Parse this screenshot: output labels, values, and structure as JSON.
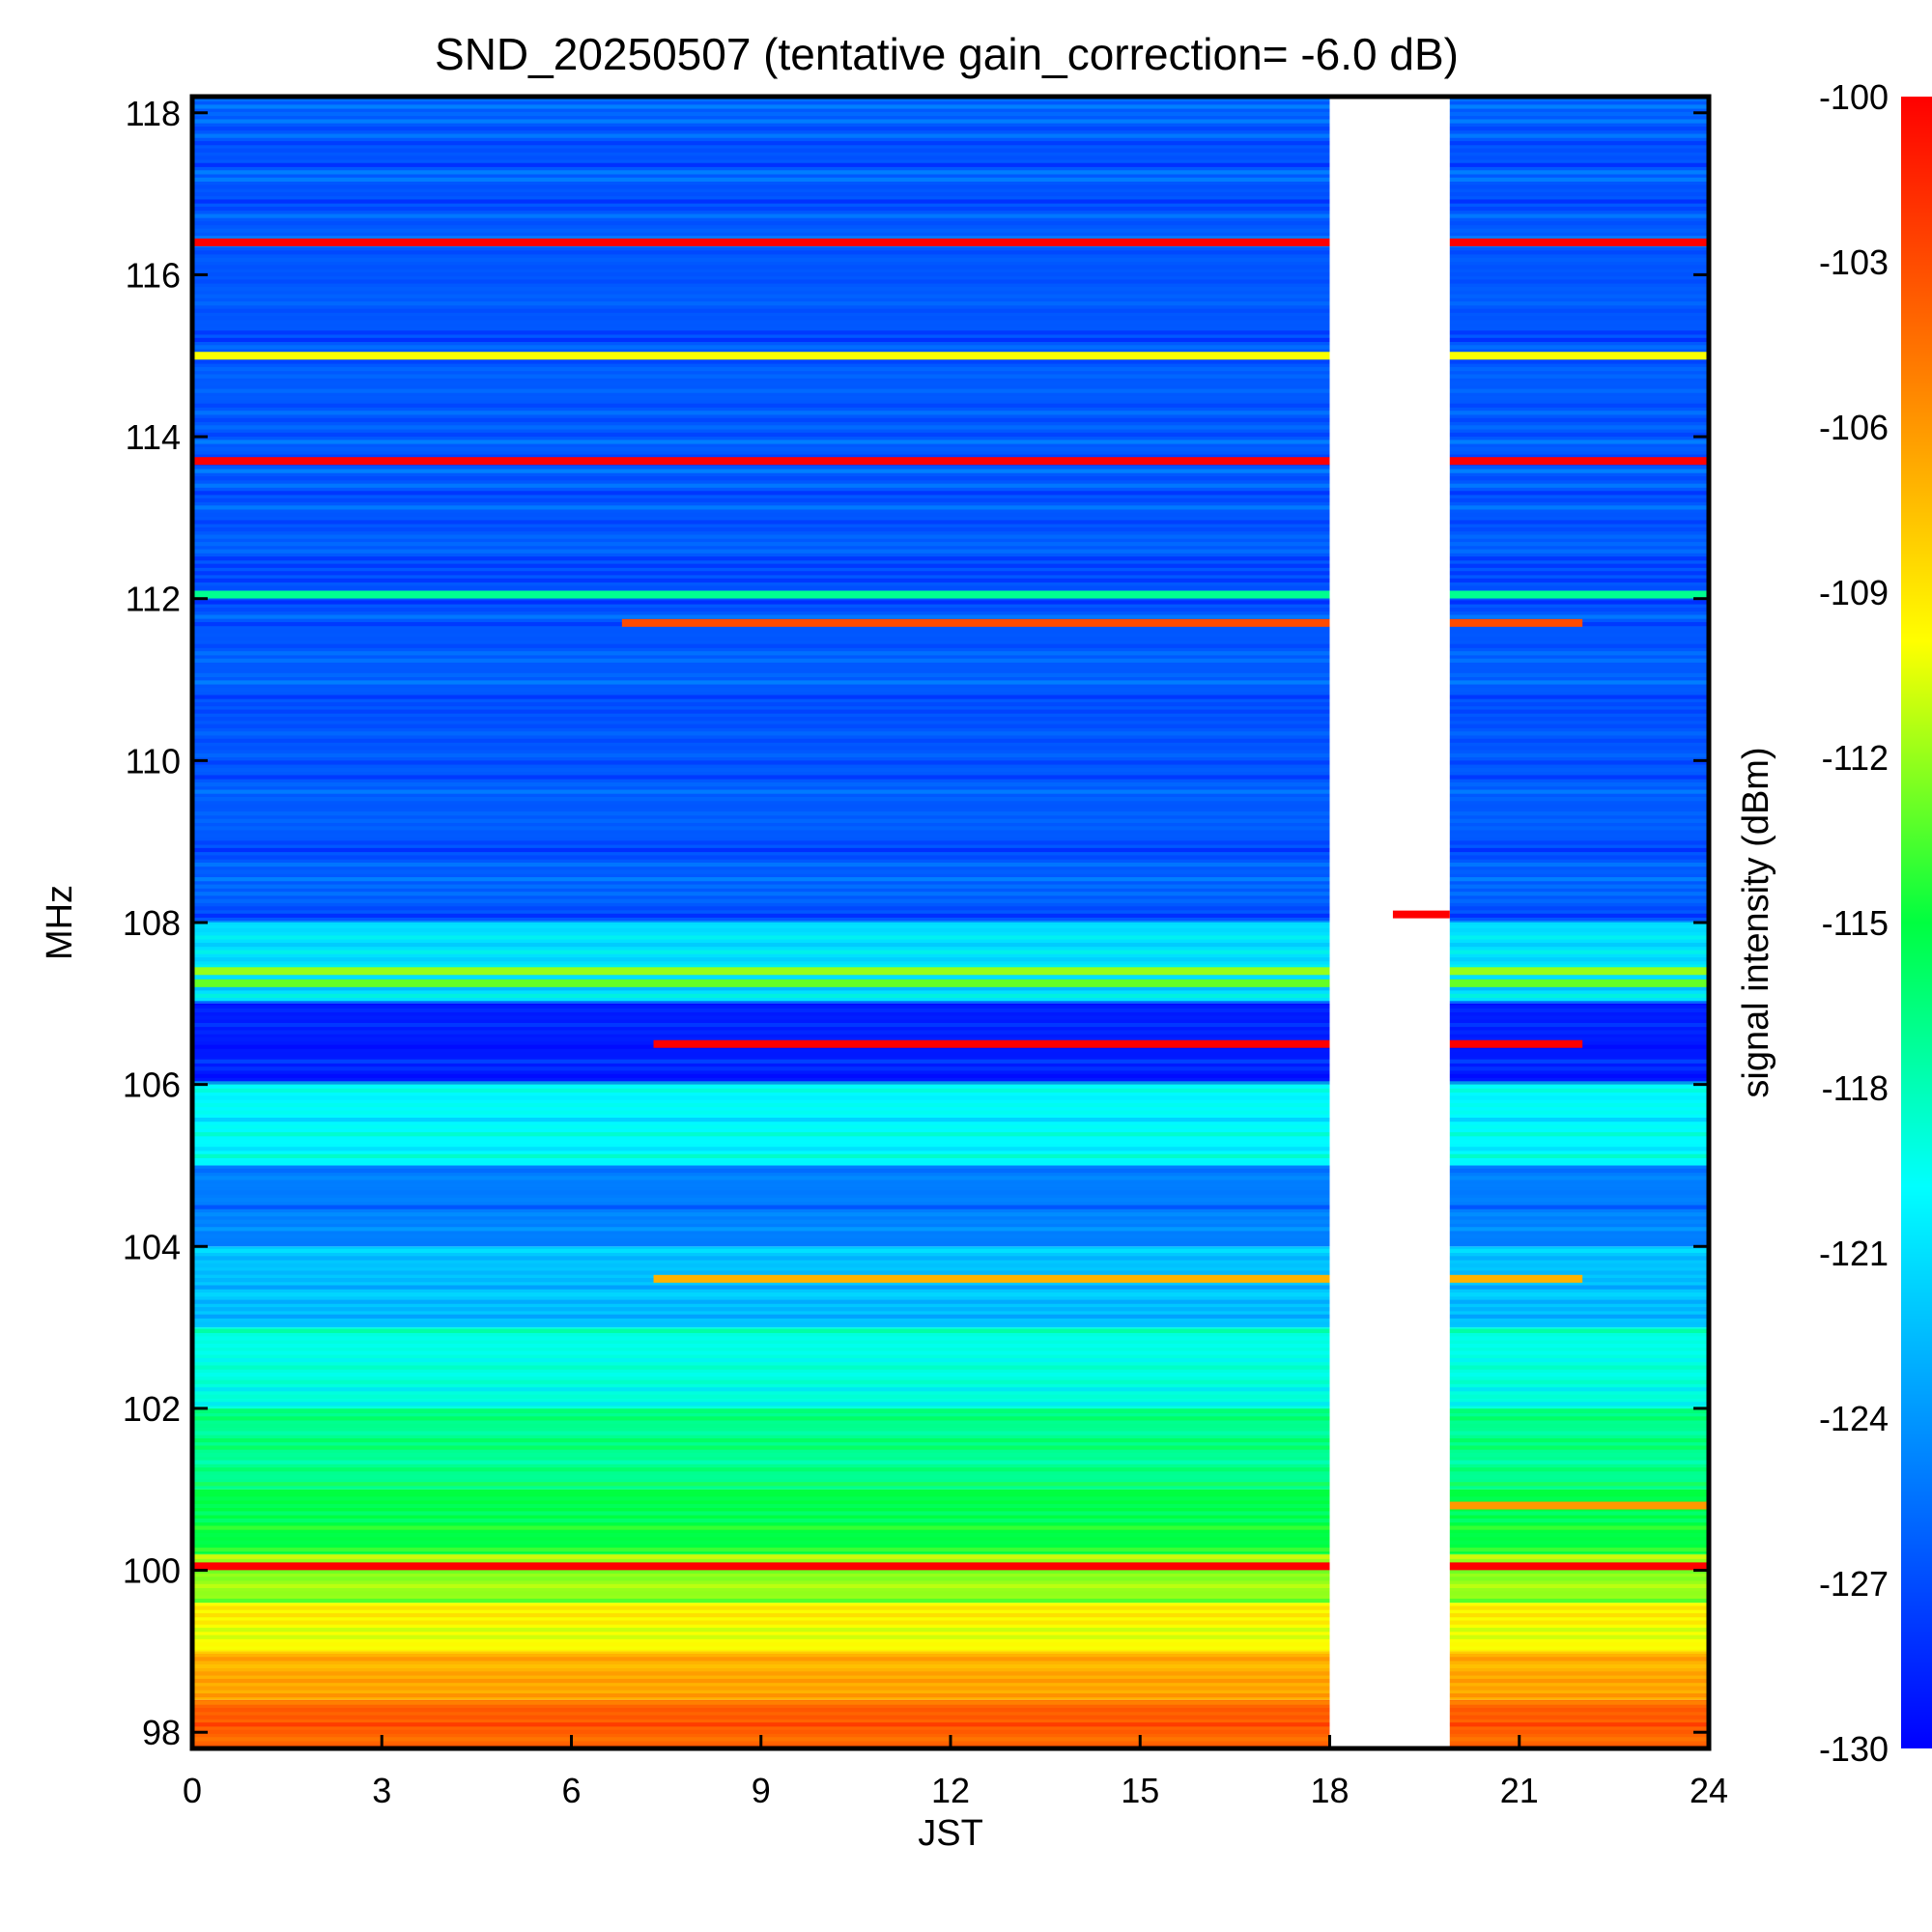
{
  "chart_data": {
    "type": "heatmap",
    "title": "SND_20250507 (tentative gain_correction= -6.0 dB)",
    "xlabel": "JST",
    "ylabel": "MHz",
    "colorbar_label": "signal intensity (dBm)",
    "x_ticks": [
      "0",
      "3",
      "6",
      "9",
      "12",
      "15",
      "18",
      "21",
      "24"
    ],
    "y_ticks": [
      "98",
      "100",
      "102",
      "104",
      "106",
      "108",
      "110",
      "112",
      "114",
      "116",
      "118"
    ],
    "colorbar_ticks": [
      "-100",
      "-103",
      "-106",
      "-109",
      "-112",
      "-115",
      "-118",
      "-121",
      "-124",
      "-127",
      "-130"
    ],
    "xlim": [
      0,
      24
    ],
    "ylim": [
      97.8,
      118.2
    ],
    "clim": [
      -130,
      -100
    ],
    "colormap": "rainbow (blue = -130 dBm, red = -100 dBm)",
    "data_gap_jst": [
      18.0,
      19.9
    ],
    "background_by_band": [
      {
        "mhz": [
          97.8,
          98.4
        ],
        "dbm": -104
      },
      {
        "mhz": [
          98.4,
          99.0
        ],
        "dbm": -107
      },
      {
        "mhz": [
          99.0,
          99.6
        ],
        "dbm": -110
      },
      {
        "mhz": [
          99.6,
          100.2
        ],
        "dbm": -112
      },
      {
        "mhz": [
          100.2,
          101.0
        ],
        "dbm": -115
      },
      {
        "mhz": [
          101.0,
          102.0
        ],
        "dbm": -117
      },
      {
        "mhz": [
          102.0,
          103.0
        ],
        "dbm": -119
      },
      {
        "mhz": [
          103.0,
          104.0
        ],
        "dbm": -122
      },
      {
        "mhz": [
          104.0,
          105.0
        ],
        "dbm": -125
      },
      {
        "mhz": [
          105.0,
          106.0
        ],
        "dbm": -120
      },
      {
        "mhz": [
          106.0,
          107.0
        ],
        "dbm": -129
      },
      {
        "mhz": [
          107.0,
          108.0
        ],
        "dbm": -121
      },
      {
        "mhz": [
          108.0,
          118.2
        ],
        "dbm": -126.5
      }
    ],
    "persistent_signals": [
      {
        "mhz": 116.4,
        "dbm": -100,
        "jst": [
          0,
          24
        ]
      },
      {
        "mhz": 115.0,
        "dbm": -110,
        "jst": [
          0,
          24
        ]
      },
      {
        "mhz": 113.7,
        "dbm": -100,
        "jst": [
          0,
          24
        ]
      },
      {
        "mhz": 112.05,
        "dbm": -117,
        "jst": [
          0,
          24
        ]
      },
      {
        "mhz": 111.7,
        "dbm": -103,
        "jst": [
          6.8,
          22
        ]
      },
      {
        "mhz": 108.1,
        "dbm": -100,
        "jst": [
          19.0,
          19.9
        ]
      },
      {
        "mhz": 107.4,
        "dbm": -112,
        "jst": [
          0,
          24
        ]
      },
      {
        "mhz": 107.25,
        "dbm": -113,
        "jst": [
          0,
          24
        ]
      },
      {
        "mhz": 106.5,
        "dbm": -100,
        "jst": [
          7.3,
          22
        ]
      },
      {
        "mhz": 103.6,
        "dbm": -107,
        "jst": [
          7.3,
          22
        ]
      },
      {
        "mhz": 100.8,
        "dbm": -106,
        "jst": [
          19.9,
          24
        ]
      },
      {
        "mhz": 100.05,
        "dbm": -100,
        "jst": [
          0,
          24
        ]
      }
    ]
  },
  "colors": {
    "background": "#ffffff",
    "axis": "#000000",
    "gap": "#ffffff"
  }
}
